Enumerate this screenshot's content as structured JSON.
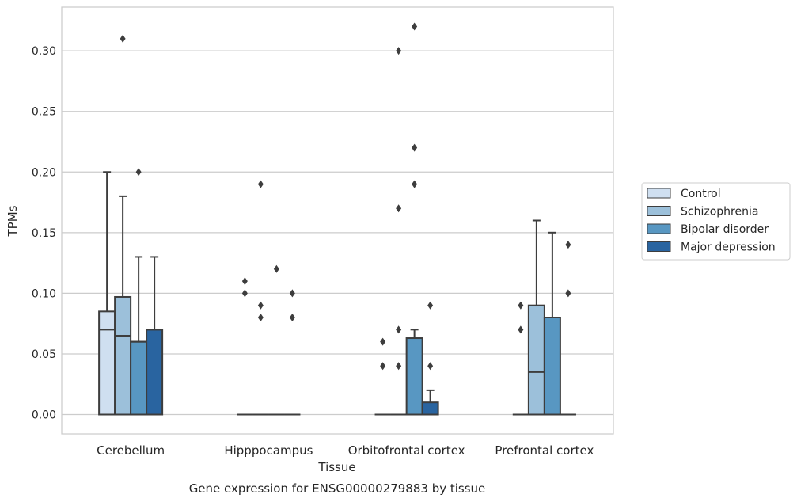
{
  "chart_data": {
    "type": "box",
    "caption": "Gene expression for ENSG00000279883 by tissue",
    "xlabel": "Tissue",
    "ylabel": "TPMs",
    "ylim": [
      -0.016,
      0.336
    ],
    "yticks": [
      0.0,
      0.05,
      0.1,
      0.15,
      0.2,
      0.25,
      0.3
    ],
    "ytick_labels": [
      "0.00",
      "0.05",
      "0.10",
      "0.15",
      "0.20",
      "0.25",
      "0.30"
    ],
    "categories": [
      "Cerebellum",
      "Hipppocampus",
      "Orbitofrontal cortex",
      "Prefrontal cortex"
    ],
    "grid": "horizontal",
    "legend_position": "right",
    "series": [
      {
        "name": "Control",
        "color": "#cfdff0",
        "boxes": [
          {
            "q1": 0.0,
            "median": 0.07,
            "q3": 0.085,
            "whislo": 0.0,
            "whishi": 0.2,
            "fliers": []
          },
          {
            "q1": 0.0,
            "median": 0.0,
            "q3": 0.0,
            "whislo": 0.0,
            "whishi": 0.0,
            "fliers": [
              0.1,
              0.11
            ]
          },
          {
            "q1": 0.0,
            "median": 0.0,
            "q3": 0.0,
            "whislo": 0.0,
            "whishi": 0.0,
            "fliers": [
              0.04,
              0.06
            ]
          },
          {
            "q1": 0.0,
            "median": 0.0,
            "q3": 0.0,
            "whislo": 0.0,
            "whishi": 0.0,
            "fliers": [
              0.07,
              0.09
            ]
          }
        ]
      },
      {
        "name": "Schizophrenia",
        "color": "#9cc0da",
        "boxes": [
          {
            "q1": 0.0,
            "median": 0.065,
            "q3": 0.097,
            "whislo": 0.0,
            "whishi": 0.18,
            "fliers": [
              0.31
            ]
          },
          {
            "q1": 0.0,
            "median": 0.0,
            "q3": 0.0,
            "whislo": 0.0,
            "whishi": 0.0,
            "fliers": [
              0.08,
              0.09,
              0.19
            ]
          },
          {
            "q1": 0.0,
            "median": 0.0,
            "q3": 0.0,
            "whislo": 0.0,
            "whishi": 0.0,
            "fliers": [
              0.04,
              0.07,
              0.17,
              0.3
            ]
          },
          {
            "q1": 0.0,
            "median": 0.035,
            "q3": 0.09,
            "whislo": 0.0,
            "whishi": 0.16,
            "fliers": []
          }
        ]
      },
      {
        "name": "Bipolar disorder",
        "color": "#5897c2",
        "boxes": [
          {
            "q1": 0.0,
            "median": 0.06,
            "q3": 0.06,
            "whislo": 0.0,
            "whishi": 0.13,
            "fliers": [
              0.2
            ]
          },
          {
            "q1": 0.0,
            "median": 0.0,
            "q3": 0.0,
            "whislo": 0.0,
            "whishi": 0.0,
            "fliers": [
              0.12
            ]
          },
          {
            "q1": 0.0,
            "median": 0.0,
            "q3": 0.063,
            "whislo": 0.0,
            "whishi": 0.07,
            "fliers": [
              0.19,
              0.22,
              0.32
            ]
          },
          {
            "q1": 0.0,
            "median": 0.0,
            "q3": 0.08,
            "whislo": 0.0,
            "whishi": 0.15,
            "fliers": []
          }
        ]
      },
      {
        "name": "Major depression",
        "color": "#2964a0",
        "boxes": [
          {
            "q1": 0.0,
            "median": 0.07,
            "q3": 0.07,
            "whislo": 0.0,
            "whishi": 0.13,
            "fliers": []
          },
          {
            "q1": 0.0,
            "median": 0.0,
            "q3": 0.0,
            "whislo": 0.0,
            "whishi": 0.0,
            "fliers": [
              0.08,
              0.1
            ]
          },
          {
            "q1": 0.0,
            "median": 0.0,
            "q3": 0.01,
            "whislo": 0.0,
            "whishi": 0.02,
            "fliers": [
              0.04,
              0.09
            ]
          },
          {
            "q1": 0.0,
            "median": 0.0,
            "q3": 0.0,
            "whislo": 0.0,
            "whishi": 0.0,
            "fliers": [
              0.1,
              0.14
            ]
          }
        ]
      }
    ]
  }
}
